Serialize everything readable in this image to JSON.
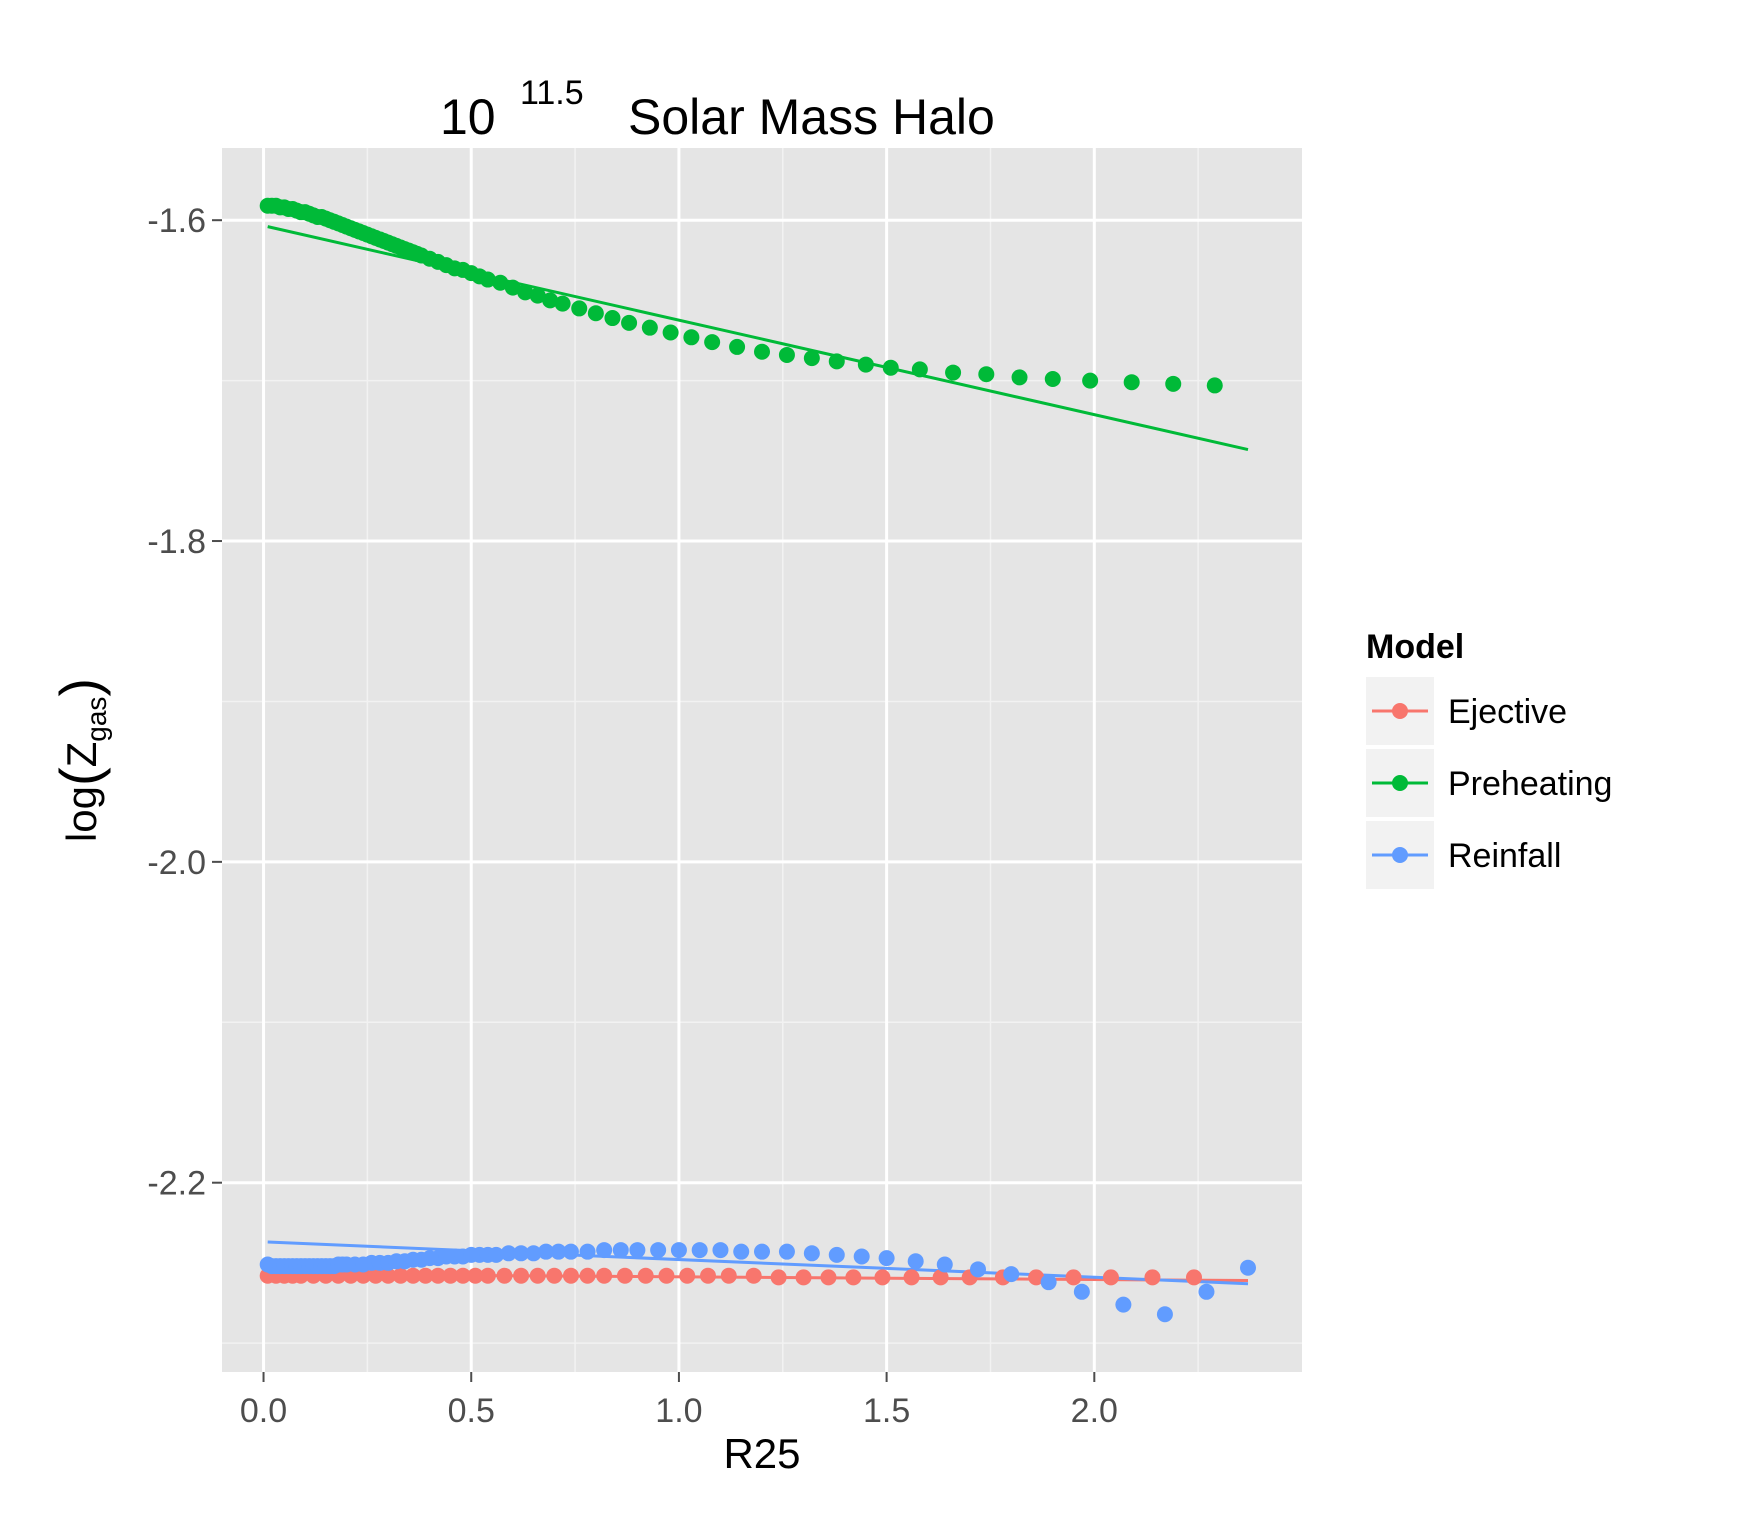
{
  "chart_data": {
    "type": "scatter",
    "title": {
      "base": "10",
      "exponent": "11.5",
      "rest": "Solar Mass Halo"
    },
    "xlabel": "R25",
    "ylabel": {
      "prefix": "log",
      "symbol": "Z",
      "subscript": "gas"
    },
    "xlim": [
      -0.1,
      2.5
    ],
    "ylim": [
      -2.318,
      -1.555
    ],
    "x_ticks": [
      0.0,
      0.5,
      1.0,
      1.5,
      2.0
    ],
    "x_tick_labels": [
      "0.0",
      "0.5",
      "1.0",
      "1.5",
      "2.0"
    ],
    "y_ticks": [
      -1.6,
      -1.8,
      -2.0,
      -2.2
    ],
    "y_tick_labels": [
      "-1.6",
      "-1.8",
      "-2.0",
      "-2.2"
    ],
    "grid": true,
    "legend": {
      "title": "Model",
      "placement": "right",
      "entries": [
        "Ejective",
        "Preheating",
        "Reinfall"
      ]
    },
    "series": [
      {
        "name": "Ejective",
        "color": "#F8766D",
        "points": [
          [
            0.01,
            -2.258
          ],
          [
            0.03,
            -2.258
          ],
          [
            0.05,
            -2.258
          ],
          [
            0.07,
            -2.258
          ],
          [
            0.09,
            -2.258
          ],
          [
            0.12,
            -2.258
          ],
          [
            0.15,
            -2.258
          ],
          [
            0.18,
            -2.258
          ],
          [
            0.21,
            -2.258
          ],
          [
            0.24,
            -2.258
          ],
          [
            0.27,
            -2.258
          ],
          [
            0.3,
            -2.258
          ],
          [
            0.33,
            -2.258
          ],
          [
            0.36,
            -2.258
          ],
          [
            0.39,
            -2.258
          ],
          [
            0.42,
            -2.258
          ],
          [
            0.45,
            -2.258
          ],
          [
            0.48,
            -2.258
          ],
          [
            0.51,
            -2.258
          ],
          [
            0.54,
            -2.258
          ],
          [
            0.58,
            -2.258
          ],
          [
            0.62,
            -2.258
          ],
          [
            0.66,
            -2.258
          ],
          [
            0.7,
            -2.258
          ],
          [
            0.74,
            -2.258
          ],
          [
            0.78,
            -2.258
          ],
          [
            0.82,
            -2.258
          ],
          [
            0.87,
            -2.258
          ],
          [
            0.92,
            -2.258
          ],
          [
            0.97,
            -2.258
          ],
          [
            1.02,
            -2.258
          ],
          [
            1.07,
            -2.258
          ],
          [
            1.12,
            -2.258
          ],
          [
            1.18,
            -2.258
          ],
          [
            1.24,
            -2.259
          ],
          [
            1.3,
            -2.259
          ],
          [
            1.36,
            -2.259
          ],
          [
            1.42,
            -2.259
          ],
          [
            1.49,
            -2.259
          ],
          [
            1.56,
            -2.259
          ],
          [
            1.63,
            -2.259
          ],
          [
            1.7,
            -2.259
          ],
          [
            1.78,
            -2.259
          ],
          [
            1.86,
            -2.259
          ],
          [
            1.95,
            -2.259
          ],
          [
            2.04,
            -2.259
          ],
          [
            2.14,
            -2.259
          ],
          [
            2.24,
            -2.259
          ]
        ],
        "fit": [
          [
            0.01,
            -2.257
          ],
          [
            2.37,
            -2.261
          ]
        ]
      },
      {
        "name": "Preheating",
        "color": "#00BA38",
        "points": [
          [
            0.01,
            -1.591
          ],
          [
            0.02,
            -1.591
          ],
          [
            0.03,
            -1.591
          ],
          [
            0.04,
            -1.592
          ],
          [
            0.05,
            -1.592
          ],
          [
            0.06,
            -1.593
          ],
          [
            0.07,
            -1.593
          ],
          [
            0.08,
            -1.594
          ],
          [
            0.09,
            -1.595
          ],
          [
            0.1,
            -1.595
          ],
          [
            0.11,
            -1.596
          ],
          [
            0.12,
            -1.597
          ],
          [
            0.13,
            -1.598
          ],
          [
            0.14,
            -1.598
          ],
          [
            0.15,
            -1.599
          ],
          [
            0.16,
            -1.6
          ],
          [
            0.17,
            -1.601
          ],
          [
            0.18,
            -1.602
          ],
          [
            0.19,
            -1.603
          ],
          [
            0.2,
            -1.604
          ],
          [
            0.21,
            -1.605
          ],
          [
            0.22,
            -1.606
          ],
          [
            0.23,
            -1.607
          ],
          [
            0.24,
            -1.608
          ],
          [
            0.25,
            -1.609
          ],
          [
            0.26,
            -1.61
          ],
          [
            0.27,
            -1.611
          ],
          [
            0.28,
            -1.612
          ],
          [
            0.29,
            -1.613
          ],
          [
            0.3,
            -1.614
          ],
          [
            0.31,
            -1.615
          ],
          [
            0.32,
            -1.616
          ],
          [
            0.33,
            -1.617
          ],
          [
            0.34,
            -1.618
          ],
          [
            0.35,
            -1.619
          ],
          [
            0.36,
            -1.62
          ],
          [
            0.37,
            -1.621
          ],
          [
            0.38,
            -1.622
          ],
          [
            0.4,
            -1.624
          ],
          [
            0.42,
            -1.626
          ],
          [
            0.44,
            -1.628
          ],
          [
            0.46,
            -1.63
          ],
          [
            0.48,
            -1.631
          ],
          [
            0.5,
            -1.633
          ],
          [
            0.52,
            -1.635
          ],
          [
            0.54,
            -1.637
          ],
          [
            0.57,
            -1.639
          ],
          [
            0.6,
            -1.642
          ],
          [
            0.63,
            -1.645
          ],
          [
            0.66,
            -1.647
          ],
          [
            0.69,
            -1.65
          ],
          [
            0.72,
            -1.652
          ],
          [
            0.76,
            -1.655
          ],
          [
            0.8,
            -1.658
          ],
          [
            0.84,
            -1.661
          ],
          [
            0.88,
            -1.664
          ],
          [
            0.93,
            -1.667
          ],
          [
            0.98,
            -1.67
          ],
          [
            1.03,
            -1.673
          ],
          [
            1.08,
            -1.676
          ],
          [
            1.14,
            -1.679
          ],
          [
            1.2,
            -1.682
          ],
          [
            1.26,
            -1.684
          ],
          [
            1.32,
            -1.686
          ],
          [
            1.38,
            -1.688
          ],
          [
            1.45,
            -1.69
          ],
          [
            1.51,
            -1.692
          ],
          [
            1.58,
            -1.693
          ],
          [
            1.66,
            -1.695
          ],
          [
            1.74,
            -1.696
          ],
          [
            1.82,
            -1.698
          ],
          [
            1.9,
            -1.699
          ],
          [
            1.99,
            -1.7
          ],
          [
            2.09,
            -1.701
          ],
          [
            2.19,
            -1.702
          ],
          [
            2.29,
            -1.703
          ]
        ],
        "fit": [
          [
            0.01,
            -1.604
          ],
          [
            2.37,
            -1.743
          ]
        ]
      },
      {
        "name": "Reinfall",
        "color": "#619CFF",
        "points": [
          [
            0.01,
            -2.251
          ],
          [
            0.02,
            -2.252
          ],
          [
            0.03,
            -2.252
          ],
          [
            0.04,
            -2.252
          ],
          [
            0.05,
            -2.252
          ],
          [
            0.06,
            -2.252
          ],
          [
            0.07,
            -2.252
          ],
          [
            0.08,
            -2.252
          ],
          [
            0.09,
            -2.252
          ],
          [
            0.1,
            -2.252
          ],
          [
            0.11,
            -2.252
          ],
          [
            0.12,
            -2.252
          ],
          [
            0.13,
            -2.252
          ],
          [
            0.14,
            -2.252
          ],
          [
            0.15,
            -2.252
          ],
          [
            0.16,
            -2.252
          ],
          [
            0.17,
            -2.252
          ],
          [
            0.18,
            -2.251
          ],
          [
            0.19,
            -2.251
          ],
          [
            0.2,
            -2.251
          ],
          [
            0.22,
            -2.251
          ],
          [
            0.24,
            -2.251
          ],
          [
            0.26,
            -2.25
          ],
          [
            0.28,
            -2.25
          ],
          [
            0.3,
            -2.25
          ],
          [
            0.32,
            -2.249
          ],
          [
            0.34,
            -2.249
          ],
          [
            0.36,
            -2.248
          ],
          [
            0.38,
            -2.248
          ],
          [
            0.4,
            -2.247
          ],
          [
            0.42,
            -2.247
          ],
          [
            0.44,
            -2.246
          ],
          [
            0.46,
            -2.246
          ],
          [
            0.48,
            -2.246
          ],
          [
            0.5,
            -2.245
          ],
          [
            0.52,
            -2.245
          ],
          [
            0.54,
            -2.245
          ],
          [
            0.56,
            -2.245
          ],
          [
            0.59,
            -2.244
          ],
          [
            0.62,
            -2.244
          ],
          [
            0.65,
            -2.244
          ],
          [
            0.68,
            -2.243
          ],
          [
            0.71,
            -2.243
          ],
          [
            0.74,
            -2.243
          ],
          [
            0.78,
            -2.243
          ],
          [
            0.82,
            -2.242
          ],
          [
            0.86,
            -2.242
          ],
          [
            0.9,
            -2.242
          ],
          [
            0.95,
            -2.242
          ],
          [
            1.0,
            -2.242
          ],
          [
            1.05,
            -2.242
          ],
          [
            1.1,
            -2.242
          ],
          [
            1.15,
            -2.243
          ],
          [
            1.2,
            -2.243
          ],
          [
            1.26,
            -2.243
          ],
          [
            1.32,
            -2.244
          ],
          [
            1.38,
            -2.245
          ],
          [
            1.44,
            -2.246
          ],
          [
            1.5,
            -2.247
          ],
          [
            1.57,
            -2.249
          ],
          [
            1.64,
            -2.251
          ],
          [
            1.72,
            -2.254
          ],
          [
            1.8,
            -2.257
          ],
          [
            1.89,
            -2.262
          ],
          [
            1.97,
            -2.268
          ],
          [
            2.07,
            -2.276
          ],
          [
            2.17,
            -2.282
          ],
          [
            2.27,
            -2.268
          ],
          [
            2.37,
            -2.253
          ]
        ],
        "fit": [
          [
            0.01,
            -2.237
          ],
          [
            2.37,
            -2.263
          ]
        ]
      }
    ]
  }
}
